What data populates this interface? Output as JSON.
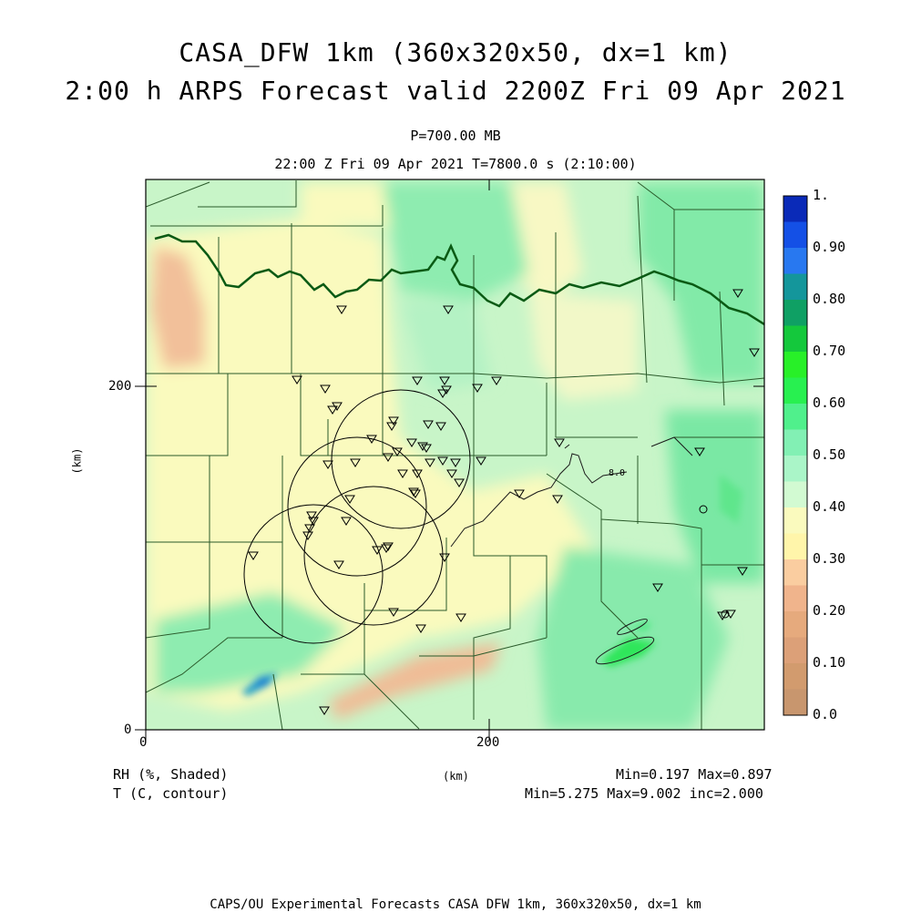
{
  "title": {
    "line1": "CASA_DFW 1km (360x320x50, dx=1 km)",
    "line2": "2:00 h ARPS Forecast valid 2200Z Fri 09 Apr 2021"
  },
  "level_label": "P=700.00 MB",
  "valid_label": "22:00 Z Fri 09 Apr 2021   T=7800.0 s (2:10:00)",
  "axes": {
    "x_ticks": [
      "0",
      "200"
    ],
    "y_ticks": [
      "0",
      "200"
    ],
    "x_unit": "(km)",
    "y_unit": "(km)"
  },
  "colorbar": {
    "labels": [
      "1.",
      "0.90",
      "0.80",
      "0.70",
      "0.60",
      "0.50",
      "0.40",
      "0.30",
      "0.20",
      "0.10",
      "0.0"
    ],
    "colors": [
      "#0a2ab8",
      "#1450e6",
      "#2878f0",
      "#14969b",
      "#0fa064",
      "#14c83c",
      "#28f028",
      "#28f050",
      "#50f08c",
      "#82f0b4",
      "#aaf5c8",
      "#d2fad2",
      "#fafabe",
      "#fff5aa",
      "#facda0",
      "#f0b48c",
      "#e6aa7d",
      "#dca078",
      "#d29b6e",
      "#c8966e"
    ]
  },
  "contour_label": "8.0",
  "legend": {
    "rh_name": "RH (%, Shaded)",
    "t_name": "T (C, contour)",
    "rh_stats": "Min=0.197 Max=0.897",
    "t_stats": "Min=5.275 Max=9.002 inc=2.000"
  },
  "credit": "CAPS/OU Experimental Forecasts  CASA DFW 1km, 360x320x50, dx=1 km",
  "colors": {
    "base_moist": "#aaf0c0",
    "dry_yellow": "#fafabe",
    "dry_orange": "#f5c8a0",
    "wet_green": "#28e650",
    "wet_blue": "#1e5adc",
    "river": "#0a5a14",
    "county": "#2a5a2a"
  }
}
